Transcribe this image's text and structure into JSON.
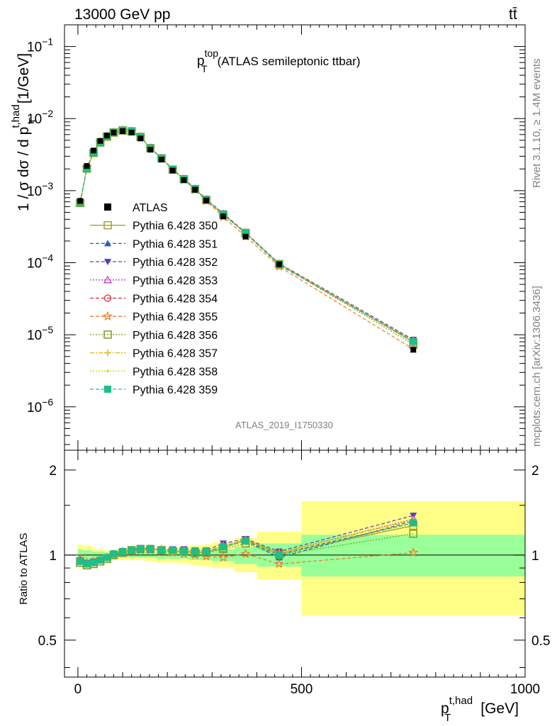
{
  "header": {
    "left": "13000 GeV pp",
    "right": "tt̄"
  },
  "side_labels": {
    "rivet": "Rivet 3.1.10, ≥ 1.4M events",
    "mcplots": "mcplots.cern.ch [arXiv:1306.3436]"
  },
  "watermark": "ATLAS_2019_I1750330",
  "chart_data": [
    {
      "type": "line",
      "title_main": "p",
      "title_sup": "top",
      "title_sub": "T",
      "title_rest": "(ATLAS semileptonic ttbar)",
      "ylabel": "1 / σ dσ / d p",
      "ylabel_sup": "t,had",
      "ylabel_sub": "T",
      "ylabel_unit": "[1/GeV]",
      "yscale": "log",
      "ylim": [
        2.5e-07,
        0.2
      ],
      "xlim": [
        -30,
        1000
      ],
      "ytick_base": "10",
      "yticks": [
        {
          "value": 0.1,
          "exp": "−1"
        },
        {
          "value": 0.01,
          "exp": "−2"
        },
        {
          "value": 0.001,
          "exp": "−3"
        },
        {
          "value": 0.0001,
          "exp": "−4"
        },
        {
          "value": 1e-05,
          "exp": "−5"
        },
        {
          "value": 1e-06,
          "exp": "−6"
        }
      ],
      "x": [
        5,
        20,
        35,
        50,
        65,
        80,
        100,
        120,
        140,
        162,
        187,
        212,
        237,
        262,
        287,
        325,
        375,
        450,
        750
      ],
      "data_y": [
        0.00072,
        0.0022,
        0.0036,
        0.0049,
        0.0058,
        0.0064,
        0.0067,
        0.0064,
        0.0053,
        0.0037,
        0.0027,
        0.0019,
        0.0014,
        0.00103,
        0.00073,
        0.00044,
        0.00023,
        9.5e-05,
        6.2e-06
      ],
      "legend": [
        {
          "name": "ATLAS",
          "color": "#000000",
          "marker": "square-filled",
          "dash": ""
        },
        {
          "name": "Pythia 6.428 350",
          "color": "#a8a03a",
          "marker": "square-open",
          "dash": ""
        },
        {
          "name": "Pythia 6.428 351",
          "color": "#1f5fc8",
          "marker": "triangle-up-filled",
          "dash": "5,3"
        },
        {
          "name": "Pythia 6.428 352",
          "color": "#5a3bbf",
          "marker": "triangle-down-filled",
          "dash": "5,3"
        },
        {
          "name": "Pythia 6.428 353",
          "color": "#c040b8",
          "marker": "triangle-up-open",
          "dash": "2,2"
        },
        {
          "name": "Pythia 6.428 354",
          "color": "#e0243c",
          "marker": "circle-open",
          "dash": "5,3"
        },
        {
          "name": "Pythia 6.428 355",
          "color": "#f07828",
          "marker": "star-open",
          "dash": "5,3"
        },
        {
          "name": "Pythia 6.428 356",
          "color": "#7f9a1c",
          "marker": "square-open",
          "dash": "2,2"
        },
        {
          "name": "Pythia 6.428 357",
          "color": "#e0b80c",
          "marker": "cross",
          "dash": "6,2,2,2"
        },
        {
          "name": "Pythia 6.428 358",
          "color": "#c8d628",
          "marker": "dot",
          "dash": "2,2"
        },
        {
          "name": "Pythia 6.428 359",
          "color": "#1cc088",
          "marker": "square-filled",
          "dash": "5,3"
        }
      ]
    },
    {
      "type": "line",
      "ylabel": "Ratio to ATLAS",
      "xlabel": "p",
      "xlabel_sup": "t,had",
      "xlabel_sub": "T",
      "xlabel_unit": "[GeV]",
      "ylim": [
        0.37,
        2.35
      ],
      "xticks": [
        0,
        500,
        1000
      ],
      "yticks": [
        0.5,
        1,
        2
      ],
      "bands": {
        "edges": [
          0,
          10,
          30,
          40,
          60,
          70,
          90,
          110,
          130,
          150,
          175,
          200,
          225,
          250,
          275,
          300,
          350,
          400,
          500,
          1000
        ],
        "inner_lo": [
          0.96,
          0.96,
          0.97,
          0.97,
          0.98,
          0.98,
          0.98,
          0.98,
          0.98,
          0.98,
          0.97,
          0.97,
          0.97,
          0.96,
          0.96,
          0.95,
          0.93,
          0.91,
          0.84
        ],
        "inner_hi": [
          1.05,
          1.04,
          1.03,
          1.03,
          1.02,
          1.02,
          1.02,
          1.02,
          1.02,
          1.02,
          1.03,
          1.03,
          1.03,
          1.04,
          1.04,
          1.05,
          1.07,
          1.1,
          1.18
        ],
        "outer_lo": [
          0.92,
          0.93,
          0.94,
          0.95,
          0.96,
          0.96,
          0.96,
          0.96,
          0.96,
          0.95,
          0.94,
          0.94,
          0.93,
          0.92,
          0.91,
          0.9,
          0.87,
          0.82,
          0.61
        ],
        "outer_hi": [
          1.09,
          1.08,
          1.06,
          1.05,
          1.04,
          1.04,
          1.04,
          1.04,
          1.04,
          1.05,
          1.06,
          1.06,
          1.07,
          1.08,
          1.09,
          1.11,
          1.15,
          1.21,
          1.55
        ]
      },
      "series": [
        {
          "name": "Pythia 6.428 350",
          "values": [
            0.94,
            0.92,
            0.93,
            0.95,
            0.97,
            1.0,
            1.02,
            1.04,
            1.05,
            1.05,
            1.04,
            1.03,
            1.03,
            1.02,
            1.02,
            1.06,
            1.13,
            1.01,
            1.27
          ]
        },
        {
          "name": "Pythia 6.428 351",
          "values": [
            0.95,
            0.93,
            0.94,
            0.96,
            0.98,
            1.01,
            1.03,
            1.04,
            1.05,
            1.05,
            1.04,
            1.04,
            1.03,
            1.03,
            1.03,
            1.07,
            1.12,
            0.98,
            1.32
          ]
        },
        {
          "name": "Pythia 6.428 352",
          "values": [
            0.96,
            0.94,
            0.95,
            0.96,
            0.98,
            1.01,
            1.03,
            1.05,
            1.06,
            1.06,
            1.05,
            1.05,
            1.05,
            1.04,
            1.04,
            1.1,
            1.14,
            1.03,
            1.38
          ]
        },
        {
          "name": "Pythia 6.428 353",
          "values": [
            0.96,
            0.93,
            0.94,
            0.96,
            0.98,
            1.01,
            1.03,
            1.04,
            1.05,
            1.05,
            1.05,
            1.04,
            1.04,
            1.03,
            1.03,
            1.08,
            1.13,
            1.02,
            1.34
          ]
        },
        {
          "name": "Pythia 6.428 354",
          "values": [
            0.95,
            0.93,
            0.94,
            0.96,
            0.98,
            1.01,
            1.03,
            1.04,
            1.05,
            1.05,
            1.04,
            1.04,
            1.03,
            1.03,
            1.03,
            1.07,
            1.12,
            1.01,
            1.3
          ]
        },
        {
          "name": "Pythia 6.428 355",
          "values": [
            0.97,
            0.94,
            0.95,
            0.96,
            0.98,
            1.0,
            1.02,
            1.03,
            1.04,
            1.04,
            1.03,
            1.02,
            1.01,
            1.0,
            0.99,
            0.98,
            1.01,
            0.93,
            1.02
          ]
        },
        {
          "name": "Pythia 6.428 356",
          "values": [
            0.94,
            0.92,
            0.93,
            0.95,
            0.97,
            1.0,
            1.02,
            1.04,
            1.05,
            1.05,
            1.04,
            1.03,
            1.03,
            1.02,
            1.02,
            1.05,
            1.1,
            1.0,
            1.19
          ]
        },
        {
          "name": "Pythia 6.428 357",
          "values": [
            0.95,
            0.93,
            0.94,
            0.96,
            0.98,
            1.01,
            1.03,
            1.04,
            1.05,
            1.05,
            1.05,
            1.04,
            1.04,
            1.03,
            1.03,
            1.08,
            1.13,
            1.02,
            1.33
          ]
        },
        {
          "name": "Pythia 6.428 358",
          "values": [
            0.95,
            0.93,
            0.94,
            0.96,
            0.98,
            1.01,
            1.03,
            1.04,
            1.05,
            1.05,
            1.04,
            1.04,
            1.03,
            1.03,
            1.03,
            1.07,
            1.12,
            1.01,
            1.28
          ]
        },
        {
          "name": "Pythia 6.428 359",
          "values": [
            0.95,
            0.93,
            0.94,
            0.96,
            0.98,
            1.01,
            1.03,
            1.04,
            1.05,
            1.05,
            1.04,
            1.04,
            1.03,
            1.03,
            1.03,
            1.07,
            1.12,
            1.0,
            1.3
          ]
        }
      ]
    }
  ]
}
